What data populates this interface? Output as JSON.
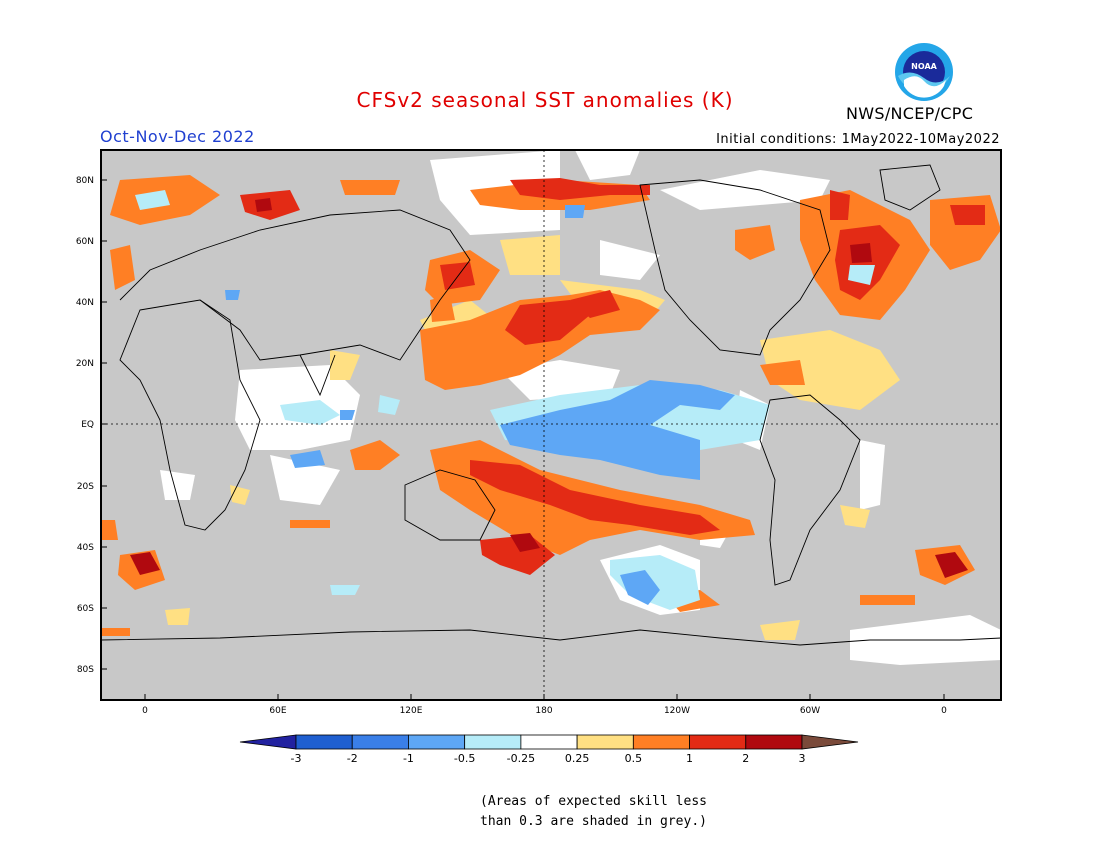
{
  "header": {
    "title": "CFSv2 seasonal SST anomalies (K)",
    "period": "Oct-Nov-Dec 2022",
    "initial_conditions": "Initial conditions: 1May2022-10May2022",
    "agency": "NWS/NCEP/CPC",
    "logo_text": "NOAA"
  },
  "map": {
    "lat_labels": [
      "80N",
      "60N",
      "40N",
      "20N",
      "EQ",
      "20S",
      "40S",
      "60S",
      "80S"
    ],
    "lon_labels": [
      "0",
      "60E",
      "120E",
      "180",
      "120W",
      "60W",
      "0"
    ],
    "colors": {
      "land": "#c8c8c8",
      "deep_blue": "#2222a0",
      "blue": "#1f6fd8",
      "mid_blue": "#3d8ff0",
      "light_blue": "#5aa5f5",
      "pale_blue": "#b6ecf8",
      "neutral": "#ffffff",
      "pale_yellow": "#ffe083",
      "orange": "#ff7f24",
      "red": "#e83e14",
      "dark_red": "#b0090f",
      "brown": "#7a4a3a"
    }
  },
  "colorbar": {
    "ticks": [
      "-3",
      "-2",
      "-1",
      "-0.5",
      "-0.25",
      "0.25",
      "0.5",
      "1",
      "2",
      "3"
    ],
    "colors": [
      "#2222a0",
      "#1f5fd0",
      "#3a7fe8",
      "#5ea7f5",
      "#b6ecf8",
      "#ffffff",
      "#ffe083",
      "#ff7f24",
      "#e32b15",
      "#b0090f",
      "#7a4a3a"
    ]
  },
  "footnote": {
    "line1": "(Areas of expected skill less",
    "line2": "than 0.3 are shaded in grey.)"
  }
}
